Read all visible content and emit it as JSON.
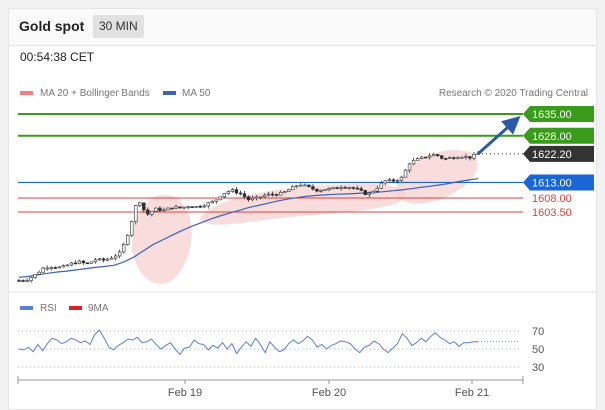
{
  "header": {
    "title": "Gold spot",
    "timeframe": "30 MIN"
  },
  "timestamp": "00:54:38 CET",
  "legend": {
    "ma20_label": "MA 20 + Bollinger Bands",
    "ma50_label": "MA 50",
    "credit": "Research © 2020 Trading Central"
  },
  "colors": {
    "candle_up": "#2e2e2e",
    "candle_down": "#2e2e2e",
    "ma20": "#f08080",
    "ma50": "#3b64b4",
    "bollinger_fill": "#f7cfcf",
    "resistance": "#3a9a1a",
    "support": "#e04040",
    "pivot": "#1a66d6",
    "last_price": "#333333",
    "arrow": "#2a5aa8",
    "rsi": "#5a7fd6",
    "nine_ma": "#e02020"
  },
  "chart_data": [
    {
      "type": "candlestick",
      "title": "Gold spot",
      "x_tick_labels": [
        "Feb 19",
        "Feb 20",
        "Feb 21"
      ],
      "ylim": [
        1585,
        1640
      ],
      "legend_placement": "top-left",
      "price_levels": [
        {
          "label": "1635.00",
          "value": 1635.0,
          "kind": "resistance"
        },
        {
          "label": "1628.00",
          "value": 1628.0,
          "kind": "resistance"
        },
        {
          "label": "1622.20",
          "value": 1622.2,
          "kind": "last"
        },
        {
          "label": "1613.00",
          "value": 1613.0,
          "kind": "pivot"
        },
        {
          "label": "1608.00",
          "value": 1608.0,
          "kind": "support"
        },
        {
          "label": "1603.50",
          "value": 1603.5,
          "kind": "support"
        }
      ],
      "close_path": [
        1581.5,
        1581.8,
        1583.5,
        1585.8,
        1586.0,
        1585.6,
        1586.8,
        1587.5,
        1586.8,
        1588.2,
        1588.0,
        1589.0,
        1590.5,
        1598.0,
        1608.0,
        1602.5,
        1604.5,
        1604.0,
        1605.0,
        1604.8,
        1605.5,
        1605.2,
        1606.0,
        1607.0,
        1609.5,
        1610.5,
        1609.5,
        1607.5,
        1608.0,
        1609.0,
        1609.2,
        1609.5,
        1611.0,
        1612.5,
        1611.5,
        1610.5,
        1610.8,
        1611.0,
        1611.8,
        1611.5,
        1610.5,
        1609.0,
        1611.0,
        1613.5,
        1613.5,
        1614.5,
        1619.5,
        1620.5,
        1621.5,
        1622.0,
        1620.5,
        1621.0,
        1621.5,
        1621.0,
        1622.2
      ],
      "ma50_path": [
        1582.5,
        1582.8,
        1583.3,
        1583.8,
        1584.2,
        1584.5,
        1584.9,
        1585.3,
        1585.7,
        1586.0,
        1586.4,
        1587.5,
        1589.0,
        1591.0,
        1593.0,
        1594.5,
        1596.0,
        1597.5,
        1598.8,
        1600.0,
        1601.2,
        1602.2,
        1603.1,
        1604.0,
        1604.9,
        1605.6,
        1606.3,
        1607.0,
        1607.6,
        1608.1,
        1608.5,
        1608.8,
        1609.0,
        1609.2,
        1609.3,
        1609.4,
        1609.6,
        1609.8,
        1610.0,
        1610.3,
        1610.6,
        1611.0,
        1611.4,
        1611.8,
        1612.2,
        1612.7,
        1613.3,
        1613.8,
        1614.2
      ],
      "target_arrow": {
        "from": 1622.2,
        "to": 1635.0
      },
      "series": [
        {
          "name": "MA 20 + Bollinger Bands"
        },
        {
          "name": "MA 50"
        }
      ]
    },
    {
      "type": "line",
      "y_tick_labels": [
        "70",
        "50",
        "30"
      ],
      "ylim": [
        20,
        80
      ],
      "series": [
        {
          "name": "RSI",
          "values": [
            50,
            49,
            52,
            47,
            55,
            48,
            56,
            62,
            60,
            56,
            58,
            62,
            60,
            57,
            59,
            55,
            66,
            71,
            62,
            52,
            49,
            54,
            57,
            61,
            60,
            63,
            57,
            58,
            61,
            55,
            50,
            54,
            57,
            50,
            44,
            51,
            52,
            60,
            56,
            55,
            49,
            54,
            51,
            57,
            50,
            56,
            45,
            52,
            58,
            53,
            62,
            55,
            46,
            58,
            52,
            47,
            49,
            56,
            60,
            56,
            59,
            64,
            60,
            52,
            55,
            50,
            54,
            56,
            59,
            58,
            56,
            50,
            46,
            52,
            54,
            59,
            56,
            50,
            46,
            51,
            56,
            67,
            62,
            54,
            57,
            62,
            58,
            64,
            68,
            63,
            60,
            56,
            58,
            53,
            57,
            57,
            58,
            58
          ]
        },
        {
          "name": "9MA"
        }
      ]
    }
  ]
}
